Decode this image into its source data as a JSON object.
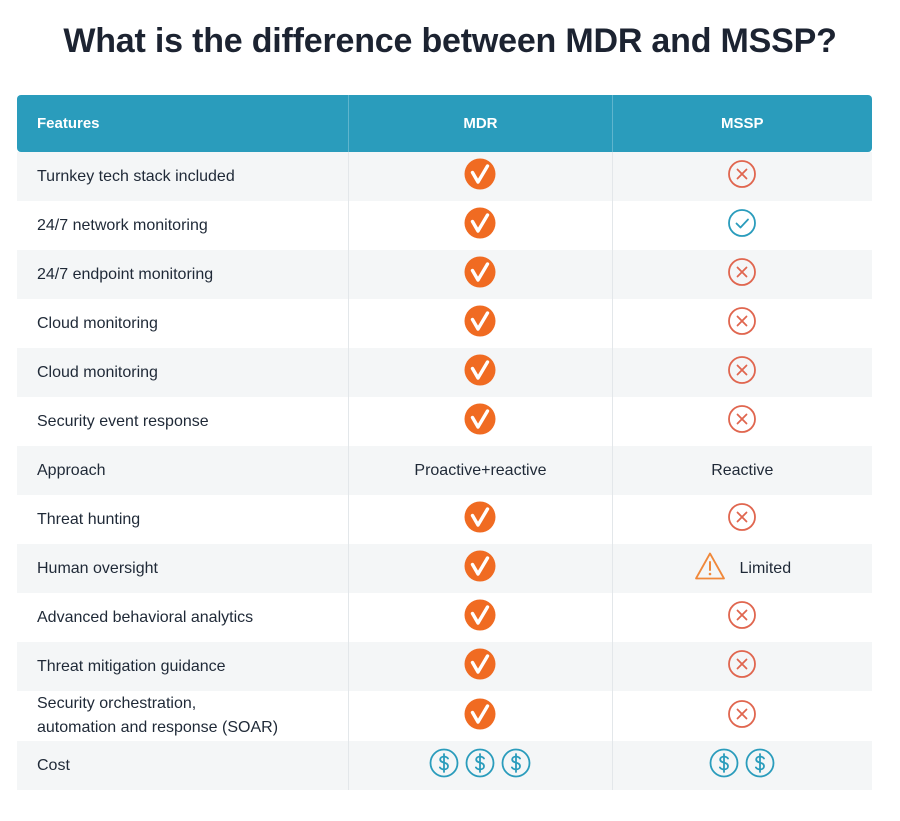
{
  "title": "What is the difference between MDR and MSSP?",
  "headers": {
    "features": "Features",
    "mdr": "MDR",
    "mssp": "MSSP"
  },
  "colors": {
    "header_bg": "#2a9cbc",
    "check_orange": "#f06b22",
    "x_red": "#e0664f",
    "tick_teal": "#2a9cbc",
    "warn_orange": "#f0883a"
  },
  "rows": [
    {
      "feature": "Turnkey tech stack included",
      "mdr": "check-icon",
      "mssp": "x-icon"
    },
    {
      "feature": "24/7 network monitoring",
      "mdr": "check-icon",
      "mssp": "tick-icon"
    },
    {
      "feature": "24/7 endpoint monitoring",
      "mdr": "check-icon",
      "mssp": "x-icon"
    },
    {
      "feature": "Cloud monitoring",
      "mdr": "check-icon",
      "mssp": "x-icon"
    },
    {
      "feature": "Cloud monitoring",
      "mdr": "check-icon",
      "mssp": "x-icon"
    },
    {
      "feature": "Security event response",
      "mdr": "check-icon",
      "mssp": "x-icon"
    },
    {
      "feature": "Approach",
      "mdr_text": "Proactive+reactive",
      "mssp_text": "Reactive"
    },
    {
      "feature": "Threat hunting",
      "mdr": "check-icon",
      "mssp": "x-icon"
    },
    {
      "feature": "Human oversight",
      "mdr": "check-icon",
      "mssp": "warning-icon",
      "mssp_text": "Limited"
    },
    {
      "feature": "Advanced behavioral analytics",
      "mdr": "check-icon",
      "mssp": "x-icon"
    },
    {
      "feature": "Threat mitigation guidance",
      "mdr": "check-icon",
      "mssp": "x-icon"
    },
    {
      "feature_line1": "Security orchestration,",
      "feature_line2": "automation and response (SOAR)",
      "mdr": "check-icon",
      "mssp": "x-icon"
    },
    {
      "feature": "Cost",
      "mdr_dollars": 3,
      "mssp_dollars": 2
    }
  ]
}
